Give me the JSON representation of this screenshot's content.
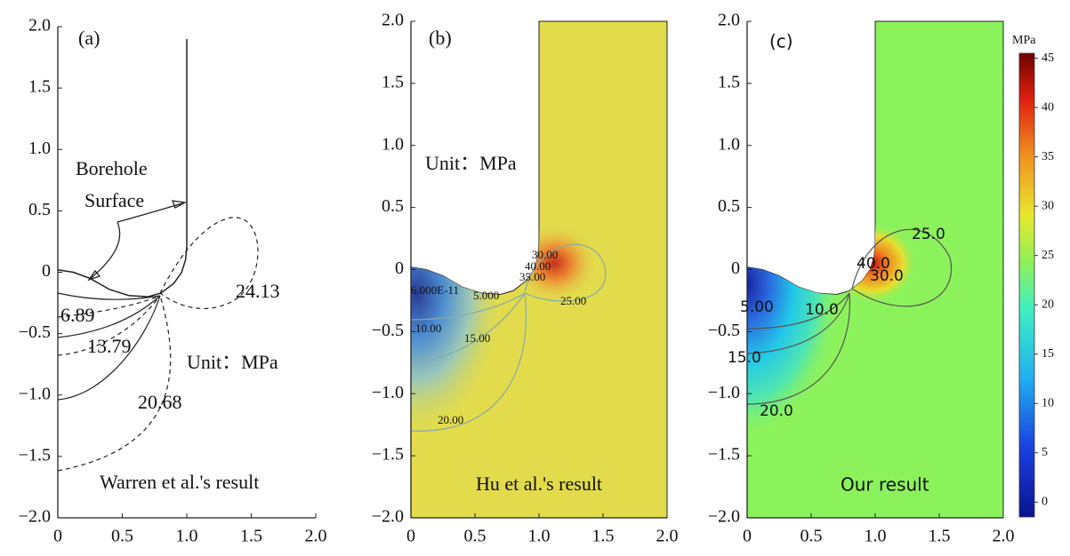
{
  "chart_data": [
    {
      "type": "contour",
      "panel_label": "(a)",
      "caption": "Warren et al.'s result",
      "unit": "Unit：MPa",
      "borehole_label": [
        "Borehole",
        "Surface"
      ],
      "contour_labels": [
        "24.13",
        "6.89",
        "13.79",
        "20.68"
      ],
      "xlim": [
        0,
        2
      ],
      "ylim": [
        -2,
        2
      ],
      "xticks": [
        0,
        0.5,
        {
          "value": 1,
          "label": "1.0"
        },
        1.5,
        {
          "value": 2,
          "label": "2.0"
        }
      ],
      "yticks": [
        {
          "value": -2,
          "label": "−2.0"
        },
        {
          "value": -1.5,
          "label": "−1.5"
        },
        {
          "value": -1,
          "label": "−1.0"
        },
        {
          "value": -0.5,
          "label": "−0.5"
        },
        0,
        0.5,
        {
          "value": 1,
          "label": "1.0"
        },
        1.5,
        {
          "value": 2,
          "label": "2.0"
        }
      ]
    },
    {
      "type": "contour",
      "panel_label": "(b)",
      "caption": "Hu et al.'s result",
      "unit": "Unit：MPa",
      "contour_labels": [
        "30.00",
        "40.00",
        "35.00",
        "6.000E-11",
        "5.000",
        "25.00",
        "10.00",
        "15.00",
        "20.00"
      ],
      "field_color": "#e2dc4c",
      "xlim": [
        0,
        2
      ],
      "ylim": [
        -2,
        2
      ],
      "xticks": [
        0,
        0.5,
        {
          "value": 1,
          "label": "1.0"
        },
        1.5,
        {
          "value": 2,
          "label": "2.0"
        }
      ],
      "yticks": [
        {
          "value": -2,
          "label": "−2.0"
        },
        {
          "value": -1.5,
          "label": "−1.5"
        },
        {
          "value": -1,
          "label": "−1.0"
        },
        {
          "value": -0.5,
          "label": "−0.5"
        },
        0,
        0.5,
        {
          "value": 1,
          "label": "1.0"
        },
        1.5,
        {
          "value": 2,
          "label": "2.0"
        }
      ]
    },
    {
      "type": "contour",
      "panel_label": "(c)",
      "caption": "Our result",
      "contour_labels": [
        "25.0",
        "40.0",
        "30.0",
        "5.00",
        "10.0",
        "15.0",
        "20.0"
      ],
      "field_color": "#8cf25c",
      "xlim": [
        0,
        2
      ],
      "ylim": [
        -2,
        2
      ],
      "xticks": [
        0,
        0.5,
        {
          "value": 1,
          "label": "1.0"
        },
        1.5,
        {
          "value": 2,
          "label": "2.0"
        }
      ],
      "yticks": [
        {
          "value": -2,
          "label": "−2.0"
        },
        {
          "value": -1.5,
          "label": "−1.5"
        },
        {
          "value": -1,
          "label": "−1.0"
        },
        {
          "value": -0.5,
          "label": "−0.5"
        },
        0,
        0.5,
        {
          "value": 1,
          "label": "1.0"
        },
        1.5,
        {
          "value": 2,
          "label": "2.0"
        }
      ],
      "colorbar": {
        "label": "MPa",
        "lim": [
          -1.5,
          45.5
        ],
        "ticks": [
          0,
          5,
          10,
          15,
          20,
          25,
          30,
          35,
          40,
          45
        ]
      }
    }
  ]
}
